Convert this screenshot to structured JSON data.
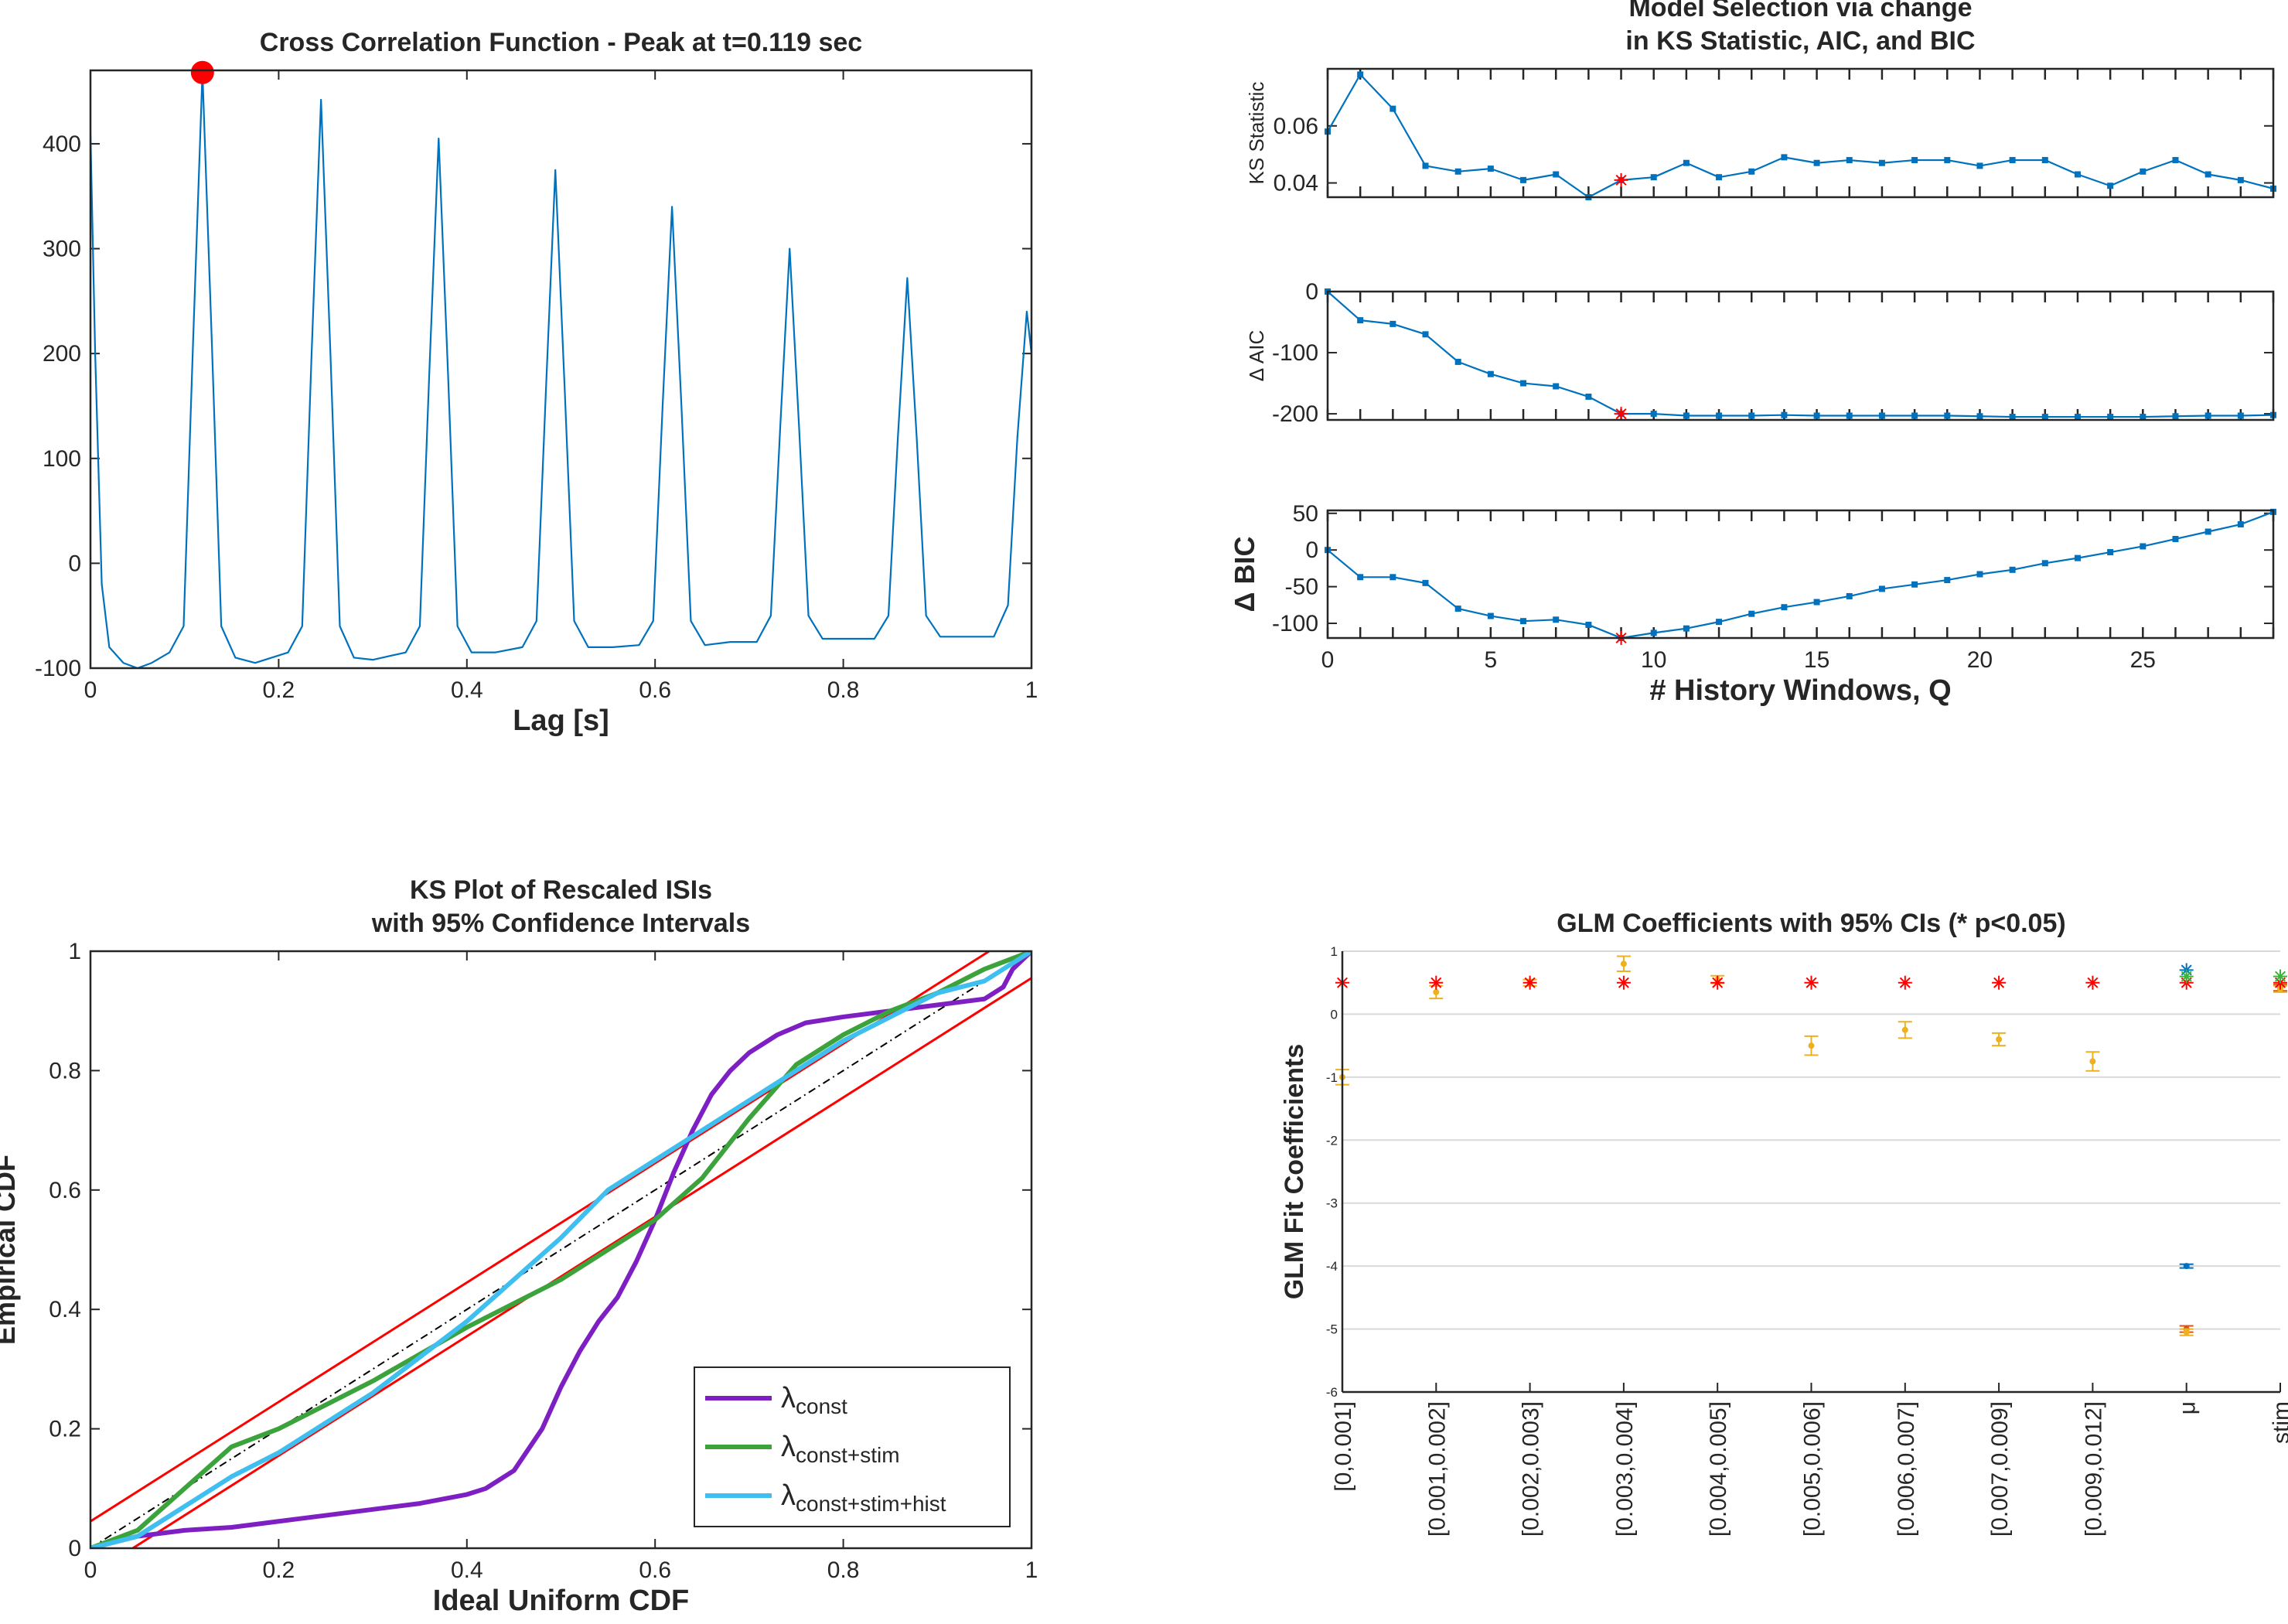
{
  "chart_data": [
    {
      "type": "line",
      "title": "Cross Correlation Function - Peak at t=0.119 sec",
      "xlabel": "Lag [s]",
      "color": "#0072bd",
      "x": [
        0,
        0.005,
        0.012,
        0.02,
        0.035,
        0.05,
        0.065,
        0.084,
        0.099,
        0.109,
        0.119,
        0.129,
        0.139,
        0.154,
        0.175,
        0.21,
        0.225,
        0.235,
        0.245,
        0.255,
        0.265,
        0.28,
        0.3,
        0.335,
        0.35,
        0.36,
        0.37,
        0.38,
        0.39,
        0.405,
        0.43,
        0.459,
        0.474,
        0.484,
        0.494,
        0.504,
        0.514,
        0.529,
        0.555,
        0.583,
        0.598,
        0.608,
        0.618,
        0.628,
        0.638,
        0.653,
        0.68,
        0.708,
        0.723,
        0.733,
        0.743,
        0.753,
        0.763,
        0.778,
        0.805,
        0.833,
        0.848,
        0.858,
        0.868,
        0.878,
        0.888,
        0.903,
        0.93,
        0.96,
        0.975,
        0.985,
        0.995,
        1
      ],
      "values": [
        410,
        200,
        -20,
        -80,
        -95,
        -100,
        -95,
        -85,
        -60,
        210,
        468,
        210,
        -60,
        -90,
        -95,
        -85,
        -60,
        200,
        442,
        200,
        -60,
        -90,
        -92,
        -85,
        -60,
        180,
        405,
        180,
        -60,
        -85,
        -85,
        -80,
        -55,
        165,
        375,
        165,
        -55,
        -80,
        -80,
        -78,
        -55,
        150,
        340,
        150,
        -55,
        -78,
        -75,
        -75,
        -50,
        130,
        300,
        130,
        -50,
        -72,
        -72,
        -72,
        -50,
        120,
        272,
        120,
        -50,
        -70,
        -70,
        -70,
        -40,
        120,
        240,
        200
      ],
      "peak_x": 0.119,
      "peak_y": 468,
      "peak_color": "#ff0000",
      "xlim": [
        0,
        1
      ],
      "xticks": [
        0,
        0.2,
        0.4,
        0.6,
        0.8,
        1
      ],
      "ylim": [
        -100,
        470
      ],
      "yticks": [
        -100,
        0,
        100,
        200,
        300,
        400
      ]
    },
    {
      "type": "line",
      "title": [
        "Model Selection via change",
        "in KS Statistic, AIC, and BIC"
      ],
      "ylabel": "KS Statistic",
      "color": "#0072bd",
      "selected_x": 9,
      "selected_color": "#ff0000",
      "x": [
        0,
        1,
        2,
        3,
        4,
        5,
        6,
        7,
        8,
        9,
        10,
        11,
        12,
        13,
        14,
        15,
        16,
        17,
        18,
        19,
        20,
        21,
        22,
        23,
        24,
        25,
        26,
        27,
        28,
        29
      ],
      "values": [
        0.058,
        0.078,
        0.066,
        0.046,
        0.044,
        0.045,
        0.041,
        0.043,
        0.035,
        0.041,
        0.042,
        0.047,
        0.042,
        0.044,
        0.049,
        0.047,
        0.048,
        0.047,
        0.048,
        0.048,
        0.046,
        0.048,
        0.048,
        0.043,
        0.039,
        0.044,
        0.048,
        0.043,
        0.041,
        0.038
      ],
      "xlim": [
        0,
        29
      ],
      "ylim": [
        0.035,
        0.08
      ],
      "yticks": [
        0.04,
        0.06
      ]
    },
    {
      "type": "line",
      "ylabel": "Δ AIC",
      "color": "#0072bd",
      "selected_x": 9,
      "selected_color": "#ff0000",
      "x": [
        0,
        1,
        2,
        3,
        4,
        5,
        6,
        7,
        8,
        9,
        10,
        11,
        12,
        13,
        14,
        15,
        16,
        17,
        18,
        19,
        20,
        21,
        22,
        23,
        24,
        25,
        26,
        27,
        28,
        29
      ],
      "values": [
        0,
        -47,
        -53,
        -70,
        -115,
        -135,
        -150,
        -155,
        -172,
        -200,
        -200,
        -203,
        -203,
        -203,
        -202,
        -203,
        -203,
        -203,
        -203,
        -203,
        -204,
        -205,
        -205,
        -205,
        -205,
        -205,
        -204,
        -203,
        -203,
        -202
      ],
      "xlim": [
        0,
        29
      ],
      "ylim": [
        -210,
        0
      ],
      "yticks": [
        -200,
        -100,
        0
      ]
    },
    {
      "type": "line",
      "ylabel": "Δ BIC",
      "xlabel": "# History Windows, Q",
      "color": "#0072bd",
      "selected_x": 9,
      "selected_color": "#ff0000",
      "x": [
        0,
        1,
        2,
        3,
        4,
        5,
        6,
        7,
        8,
        9,
        10,
        11,
        12,
        13,
        14,
        15,
        16,
        17,
        18,
        19,
        20,
        21,
        22,
        23,
        24,
        25,
        26,
        27,
        28,
        29
      ],
      "values": [
        0,
        -37,
        -37,
        -45,
        -80,
        -90,
        -97,
        -95,
        -102,
        -120,
        -113,
        -107,
        -98,
        -87,
        -78,
        -71,
        -63,
        -53,
        -47,
        -41,
        -33,
        -27,
        -18,
        -11,
        -3,
        5,
        15,
        25,
        35,
        52
      ],
      "xlim": [
        0,
        29
      ],
      "xticks": [
        0,
        5,
        10,
        15,
        20,
        25
      ],
      "ylim": [
        -120,
        54
      ],
      "yticks": [
        -100,
        -50,
        0,
        50
      ]
    },
    {
      "type": "line",
      "title": [
        "KS Plot of Rescaled ISIs",
        "with 95% Confidence Intervals"
      ],
      "xlabel": "Ideal Uniform CDF",
      "ylabel": "Empirical CDF",
      "legend": "southeast",
      "series": [
        {
          "name": "λconst",
          "color": "#7e1fc4",
          "x": [
            0,
            0.05,
            0.1,
            0.15,
            0.2,
            0.25,
            0.3,
            0.35,
            0.4,
            0.42,
            0.45,
            0.48,
            0.5,
            0.52,
            0.54,
            0.56,
            0.58,
            0.6,
            0.62,
            0.64,
            0.66,
            0.68,
            0.7,
            0.73,
            0.76,
            0.8,
            0.85,
            0.9,
            0.95,
            0.97,
            0.98,
            1
          ],
          "values": [
            0,
            0.02,
            0.03,
            0.035,
            0.045,
            0.055,
            0.065,
            0.075,
            0.09,
            0.1,
            0.13,
            0.2,
            0.27,
            0.33,
            0.38,
            0.42,
            0.48,
            0.55,
            0.63,
            0.7,
            0.76,
            0.8,
            0.83,
            0.86,
            0.88,
            0.89,
            0.9,
            0.91,
            0.92,
            0.94,
            0.97,
            1
          ]
        },
        {
          "name": "λconst+stim",
          "color": "#3ca33c",
          "x": [
            0,
            0.05,
            0.1,
            0.15,
            0.2,
            0.3,
            0.4,
            0.5,
            0.55,
            0.6,
            0.65,
            0.7,
            0.75,
            0.8,
            0.85,
            0.9,
            0.95,
            1
          ],
          "values": [
            0,
            0.03,
            0.1,
            0.17,
            0.2,
            0.28,
            0.37,
            0.45,
            0.5,
            0.55,
            0.62,
            0.72,
            0.81,
            0.86,
            0.9,
            0.93,
            0.97,
            1
          ]
        },
        {
          "name": "λconst+stim+hist",
          "color": "#3fbfef",
          "x": [
            0,
            0.05,
            0.1,
            0.15,
            0.2,
            0.3,
            0.4,
            0.5,
            0.55,
            0.6,
            0.65,
            0.7,
            0.75,
            0.8,
            0.85,
            0.9,
            0.95,
            1
          ],
          "values": [
            0,
            0.02,
            0.07,
            0.12,
            0.16,
            0.26,
            0.38,
            0.52,
            0.6,
            0.65,
            0.7,
            0.75,
            0.8,
            0.85,
            0.89,
            0.93,
            0.95,
            1
          ]
        }
      ],
      "reference_lines": [
        {
          "color": "#ff0000",
          "x": [
            0,
            0.955
          ],
          "values": [
            0.045,
            1
          ]
        },
        {
          "color": "#ff0000",
          "x": [
            0.045,
            1
          ],
          "values": [
            0,
            0.955
          ]
        },
        {
          "color": "#000000",
          "dashed": true,
          "x": [
            0,
            1
          ],
          "values": [
            0,
            1
          ]
        }
      ],
      "xlim": [
        0,
        1
      ],
      "xticks": [
        0,
        0.2,
        0.4,
        0.6,
        0.8,
        1
      ],
      "ylim": [
        0,
        1
      ],
      "yticks": [
        0,
        0.2,
        0.4,
        0.6,
        0.8,
        1
      ]
    },
    {
      "type": "errorbar",
      "title": "GLM Coefficients with 95% CIs (* p<0.05)",
      "ylabel": "GLM Fit Coefficients",
      "grid": true,
      "categories": [
        "[0,0.001]",
        "[0.001,0.002]",
        "[0.002,0.003]",
        "[0.003,0.004]",
        "[0.004,0.005]",
        "[0.005,0.006]",
        "[0.006,0.007]",
        "[0.007,0.009]",
        "[0.009,0.012]",
        "μ",
        "stim"
      ],
      "estimates": [
        {
          "color": "#0072bd",
          "values": [
            null,
            null,
            null,
            null,
            null,
            null,
            null,
            null,
            null,
            -4.0,
            null
          ],
          "errors": [
            null,
            null,
            null,
            null,
            null,
            null,
            null,
            null,
            null,
            0.03,
            null
          ]
        },
        {
          "color": "#d95319",
          "values": [
            null,
            null,
            null,
            null,
            null,
            null,
            null,
            null,
            null,
            -5.0,
            0.42
          ],
          "errors": [
            null,
            null,
            null,
            null,
            null,
            null,
            null,
            null,
            null,
            0.05,
            0.05
          ]
        },
        {
          "color": "#edb120",
          "values": [
            -1.0,
            0.35,
            0.5,
            0.8,
            0.55,
            -0.5,
            -0.25,
            -0.4,
            -0.75,
            -5.05,
            0.4
          ],
          "errors": [
            0.12,
            0.1,
            0.05,
            0.12,
            0.06,
            0.15,
            0.13,
            0.1,
            0.15,
            0.05,
            0.05
          ]
        }
      ],
      "significance": [
        {
          "color": "#ff0000",
          "values": [
            0.5,
            0.5,
            0.5,
            0.5,
            0.5,
            0.5,
            0.5,
            0.5,
            0.5,
            0.5,
            0.5
          ]
        },
        {
          "color": "#0072bd",
          "values": [
            null,
            null,
            null,
            null,
            null,
            null,
            null,
            null,
            null,
            0.7,
            null
          ]
        },
        {
          "color": "#3cb43c",
          "values": [
            null,
            null,
            null,
            null,
            null,
            null,
            null,
            null,
            null,
            0.6,
            0.6
          ]
        }
      ],
      "ylim": [
        -6,
        1
      ],
      "yticks": [
        -6,
        -5,
        -4,
        -3,
        -2,
        -1,
        0,
        1
      ]
    }
  ]
}
